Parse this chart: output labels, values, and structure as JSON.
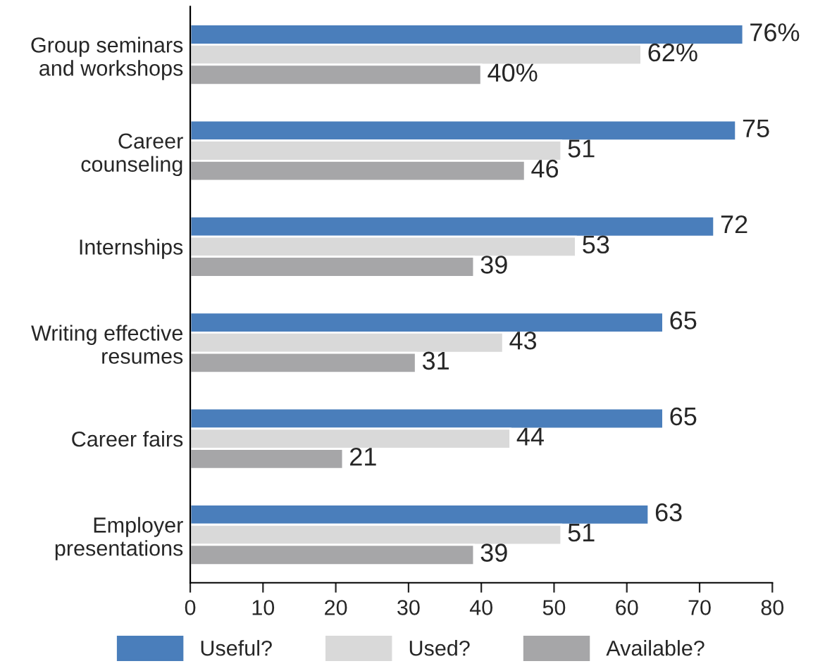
{
  "chart_data": {
    "type": "bar",
    "orientation": "horizontal",
    "categories": [
      "Group seminars\nand workshops",
      "Career\ncounseling",
      "Internships",
      "Writing effective\nresumes",
      "Career fairs",
      "Employer\npresentations"
    ],
    "series": [
      {
        "name": "Useful?",
        "color": "#4a7ebb",
        "values": [
          76,
          75,
          72,
          65,
          65,
          63
        ],
        "value_labels": [
          "76%",
          "75",
          "72",
          "65",
          "65",
          "63"
        ]
      },
      {
        "name": "Used?",
        "color": "#d9d9d9",
        "values": [
          62,
          51,
          53,
          43,
          44,
          51
        ],
        "value_labels": [
          "62%",
          "51",
          "53",
          "43",
          "44",
          "51"
        ]
      },
      {
        "name": "Available?",
        "color": "#a6a6a8",
        "values": [
          40,
          46,
          39,
          31,
          21,
          39
        ],
        "value_labels": [
          "40%",
          "46",
          "39",
          "31",
          "21",
          "39"
        ]
      }
    ],
    "xlim": [
      0,
      80
    ],
    "xticks": [
      0,
      10,
      20,
      30,
      40,
      50,
      60,
      70,
      80
    ],
    "grid": false,
    "legend": "bottom"
  }
}
